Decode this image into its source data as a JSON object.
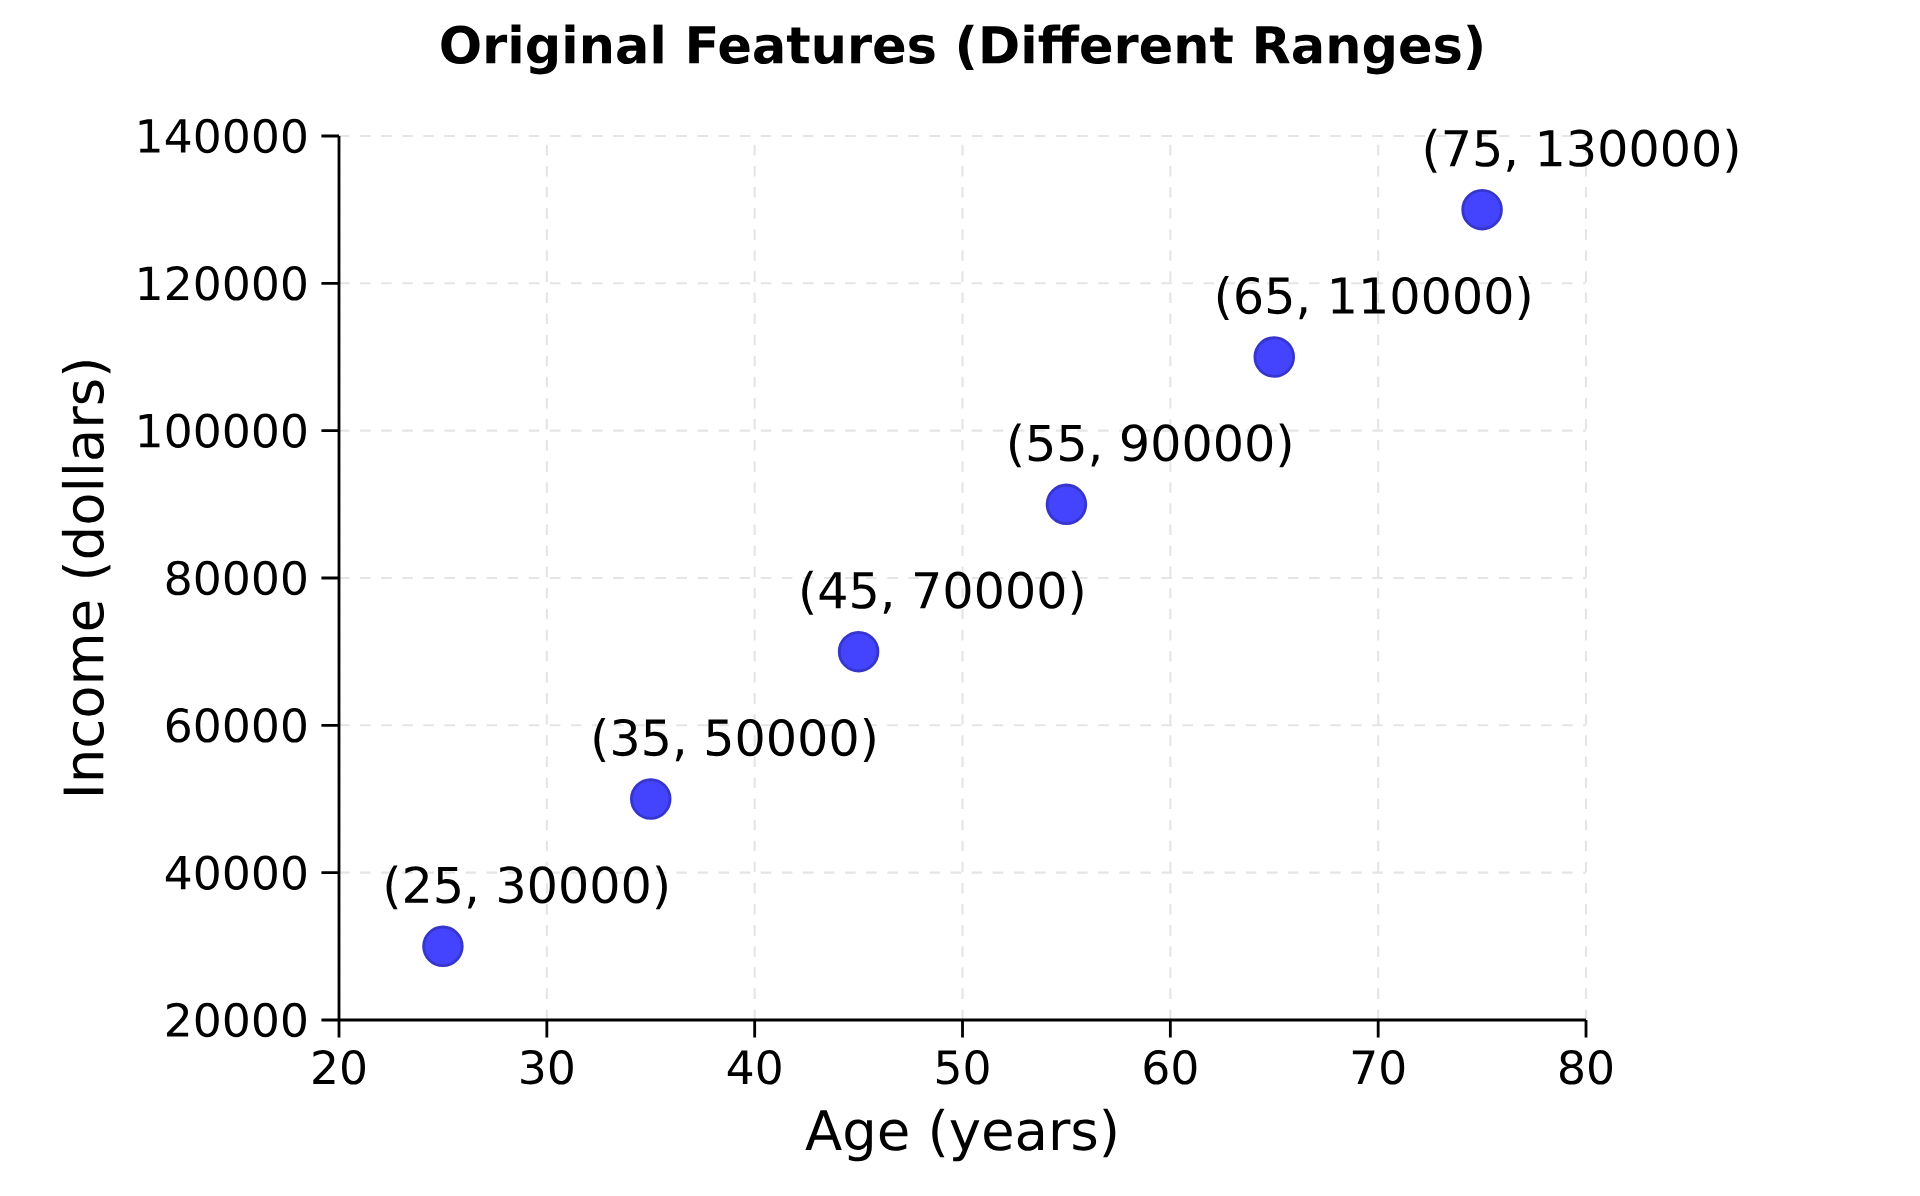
{
  "chart_data": {
    "type": "scatter",
    "title": "Original Features (Different Ranges)",
    "xlabel": "Age (years)",
    "ylabel": "Income (dollars)",
    "x": [
      25,
      35,
      45,
      55,
      65,
      75
    ],
    "values": [
      30000,
      50000,
      70000,
      90000,
      110000,
      130000
    ],
    "value_labels": [
      "(25, 30000)",
      "(35, 50000)",
      "(45, 70000)",
      "(55, 90000)",
      "(65, 110000)",
      "(75, 130000)"
    ],
    "color": "#4444ff",
    "marker": "circle",
    "grid": true,
    "xlim": [
      20,
      80
    ],
    "xticks": [
      20,
      30,
      40,
      50,
      60,
      70,
      80
    ],
    "ylim": [
      20000,
      140000
    ],
    "yticks": [
      20000,
      40000,
      60000,
      80000,
      100000,
      120000,
      140000
    ]
  }
}
